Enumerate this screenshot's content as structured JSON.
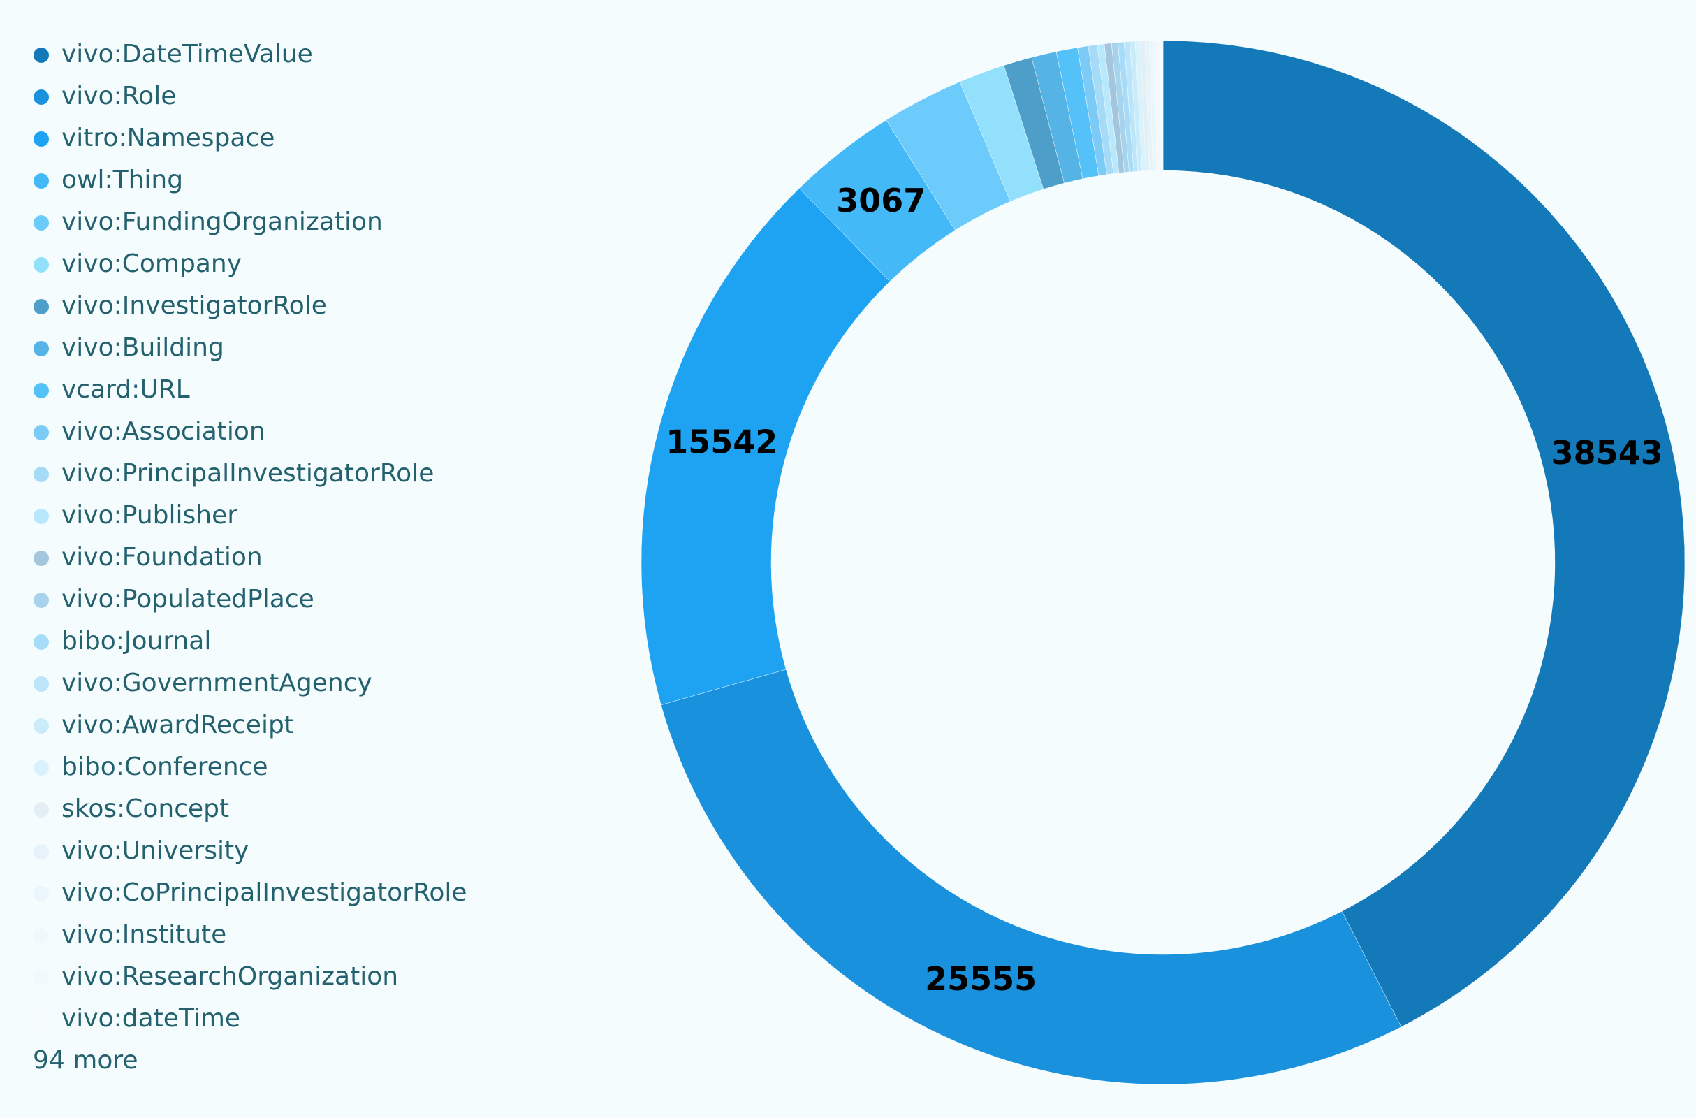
{
  "chart_data": {
    "type": "pie",
    "categories": [
      "vivo:DateTimeValue",
      "vivo:Role",
      "vitro:Namespace",
      "owl:Thing",
      "vivo:FundingOrganization",
      "vivo:Company",
      "vivo:InvestigatorRole",
      "vivo:Building",
      "vcard:URL",
      "vivo:Association",
      "vivo:PrincipalInvestigatorRole",
      "vivo:Publisher",
      "vivo:Foundation",
      "vivo:PopulatedPlace",
      "bibo:Journal",
      "vivo:GovernmentAgency",
      "vivo:AwardReceipt",
      "bibo:Conference",
      "skos:Concept",
      "vivo:University",
      "vivo:CoPrincipalInvestigatorRole",
      "vivo:Institute",
      "vivo:ResearchOrganization",
      "vivo:dateTime"
    ],
    "values": [
      38543,
      25555,
      15542,
      3067,
      2300,
      1300,
      800,
      700,
      600,
      300,
      250,
      200,
      200,
      180,
      170,
      160,
      150,
      140,
      130,
      120,
      110,
      100,
      90,
      80
    ],
    "colors": [
      "#1479b8",
      "#1a91dc",
      "#1ea3f3",
      "#44b9f8",
      "#6ccbfa",
      "#93e0fc",
      "#4d9fc9",
      "#56b3e6",
      "#55c1f9",
      "#7ccbf6",
      "#a6dbf7",
      "#b7e8fb",
      "#a3c6dc",
      "#a7d3ec",
      "#a6dcf8",
      "#bce5f9",
      "#c9ebfa",
      "#d8f3fc",
      "#e3eff5",
      "#e6f3fa",
      "#eaf6fb",
      "#eef8fd",
      "#f2f9fc",
      "#f7fbfd"
    ],
    "more_label": "94 more"
  }
}
